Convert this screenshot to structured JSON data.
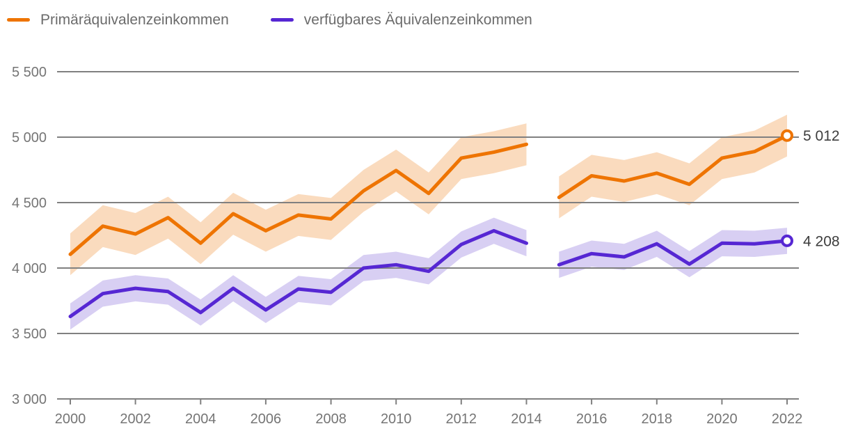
{
  "colors": {
    "background": "#ffffff",
    "gridline": "#808080",
    "axis_text": "#757575",
    "legend_text": "#6b6b6b",
    "end_label_text": "#3d3d3d",
    "endpoint_fill": "#ffffff"
  },
  "chart_data": {
    "type": "line",
    "title": "",
    "xlabel": "",
    "ylabel": "",
    "xlim": [
      2000,
      2022
    ],
    "ylim": [
      3000,
      5500
    ],
    "grid": "horizontal",
    "legend_position": "top-left",
    "gap_note": "series break: no data drawn between 2014 and 2015",
    "x_ticks": [
      2000,
      2002,
      2004,
      2006,
      2008,
      2010,
      2012,
      2014,
      2016,
      2018,
      2020,
      2022
    ],
    "x_tick_labels": [
      "2000",
      "2002",
      "2004",
      "2006",
      "2008",
      "2010",
      "2012",
      "2014",
      "2016",
      "2018",
      "2020",
      "2022"
    ],
    "y_ticks": [
      5500,
      5000,
      4500,
      4000,
      3500,
      3000
    ],
    "y_tick_labels": [
      "5 500",
      "5 000",
      "4 500",
      "4 000",
      "3 500",
      "3 000"
    ],
    "series": [
      {
        "id": "primaer",
        "name": "Primäräquivalenzeinkommen",
        "color": "#ee7402",
        "band_color": "#fadbbe",
        "band_halfwidth": 160,
        "end_label": "5 012",
        "end_value": 5012,
        "segments": [
          {
            "years": [
              2000,
              2001,
              2002,
              2003,
              2004,
              2005,
              2006,
              2007,
              2008,
              2009,
              2010,
              2011,
              2012,
              2013,
              2014
            ],
            "values": [
              4105,
              4320,
              4260,
              4385,
              4190,
              4415,
              4285,
              4405,
              4375,
              4590,
              4745,
              4570,
              4840,
              4885,
              4945
            ]
          },
          {
            "years": [
              2015,
              2016,
              2017,
              2018,
              2019,
              2020,
              2021,
              2022
            ],
            "values": [
              4540,
              4705,
              4665,
              4725,
              4640,
              4840,
              4890,
              5012
            ]
          }
        ]
      },
      {
        "id": "verfuegbar",
        "name": "verfügbares Äquivalenzeinkommen",
        "color": "#5627d3",
        "band_color": "#d8cff3",
        "band_halfwidth": 100,
        "end_label": "4 208",
        "end_value": 4208,
        "segments": [
          {
            "years": [
              2000,
              2001,
              2002,
              2003,
              2004,
              2005,
              2006,
              2007,
              2008,
              2009,
              2010,
              2011,
              2012,
              2013,
              2014
            ],
            "values": [
              3630,
              3805,
              3845,
              3820,
              3660,
              3845,
              3680,
              3840,
              3815,
              4000,
              4025,
              3975,
              4180,
              4285,
              4190
            ]
          },
          {
            "years": [
              2015,
              2016,
              2017,
              2018,
              2019,
              2020,
              2021,
              2022
            ],
            "values": [
              4025,
              4110,
              4085,
              4185,
              4030,
              4190,
              4185,
              4208
            ]
          }
        ]
      }
    ]
  }
}
